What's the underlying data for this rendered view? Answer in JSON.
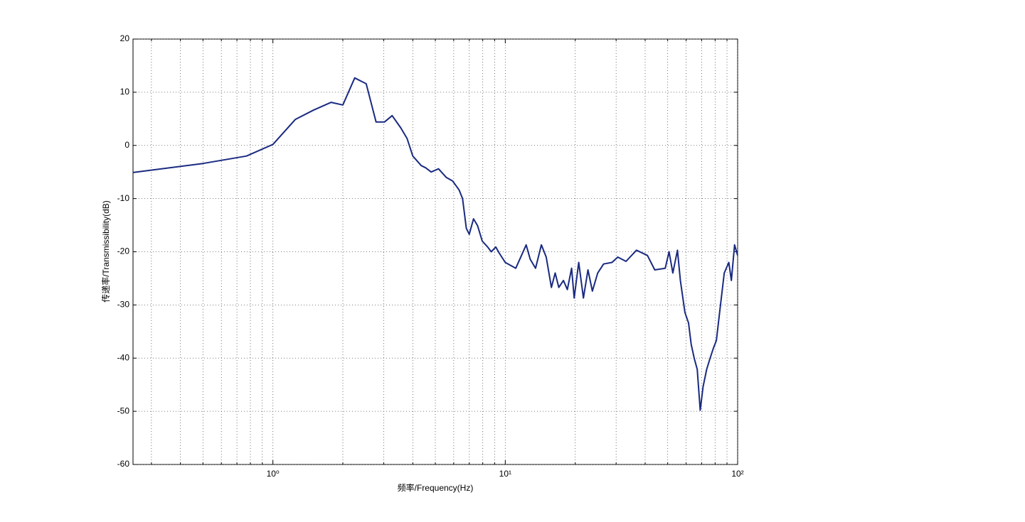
{
  "chart_data": {
    "type": "line",
    "xlabel": "频率/Frequency(Hz)",
    "ylabel": "传递率/Transmissibility(dB)",
    "xscale": "log",
    "grid": true,
    "xlim": [
      0.25,
      100
    ],
    "ylim": [
      -60,
      20
    ],
    "xticks": [
      {
        "value": 1,
        "label": "10⁰"
      },
      {
        "value": 10,
        "label": "10¹"
      },
      {
        "value": 100,
        "label": "10²"
      }
    ],
    "xminorticks": [
      0.3,
      0.4,
      0.5,
      0.6,
      0.7,
      0.8,
      0.9,
      2,
      3,
      4,
      5,
      6,
      7,
      8,
      9,
      20,
      30,
      40,
      50,
      60,
      70,
      80,
      90
    ],
    "yticks": [
      -60,
      -50,
      -40,
      -30,
      -20,
      -10,
      0,
      10,
      20
    ],
    "series": [
      {
        "color": "#1a2a80",
        "x": [
          0.25,
          0.5,
          0.77,
          1,
          1.25,
          1.49,
          1.78,
          2.0,
          2.25,
          2.52,
          2.78,
          3.02,
          3.26,
          3.55,
          3.78,
          4.0,
          4.35,
          4.54,
          4.8,
          5.16,
          5.57,
          5.94,
          6.33,
          6.55,
          6.8,
          7.0,
          7.3,
          7.6,
          7.96,
          8.4,
          8.7,
          9.1,
          9.4,
          10,
          11.1,
          11.8,
          12.3,
          12.8,
          13.5,
          14.3,
          15.0,
          15.8,
          16.4,
          17.0,
          17.8,
          18.5,
          19.3,
          19.8,
          20.7,
          21.7,
          22.7,
          23.7,
          25.0,
          26.5,
          28.8,
          30.5,
          33.1,
          36.7,
          40.9,
          44.0,
          48.8,
          50.7,
          52.6,
          55.1,
          56.7,
          59.3,
          61.5,
          63.1,
          65.1,
          67.0,
          69.0,
          71.0,
          73.6,
          76.0,
          78.7,
          81.0,
          84.0,
          87.6,
          91.6,
          94.0,
          97.0,
          100
        ],
        "values": [
          -5.1,
          -3.4,
          -2,
          0.2,
          4.9,
          6.6,
          8.1,
          7.6,
          12.7,
          11.6,
          4.4,
          4.4,
          5.6,
          3.3,
          1.3,
          -2,
          -3.8,
          -4.2,
          -5,
          -4.4,
          -6,
          -6.7,
          -8.4,
          -10,
          -15.6,
          -16.7,
          -13.8,
          -15.1,
          -18,
          -19.1,
          -20,
          -19.1,
          -20.2,
          -22,
          -23.1,
          -20.5,
          -18.7,
          -21.4,
          -23.1,
          -18.7,
          -21,
          -26.7,
          -24,
          -26.7,
          -25.4,
          -27.1,
          -23.1,
          -28.7,
          -22,
          -28.7,
          -23.4,
          -27.4,
          -24,
          -22.3,
          -22,
          -21,
          -21.8,
          -19.7,
          -20.7,
          -23.4,
          -23.1,
          -20,
          -24,
          -19.7,
          -25.4,
          -31.4,
          -33.4,
          -37.4,
          -40.1,
          -42.1,
          -49.8,
          -45.4,
          -42.1,
          -40.1,
          -38.1,
          -36.7,
          -30.7,
          -24,
          -22,
          -25.4,
          -18.7,
          -20.7
        ]
      }
    ]
  }
}
